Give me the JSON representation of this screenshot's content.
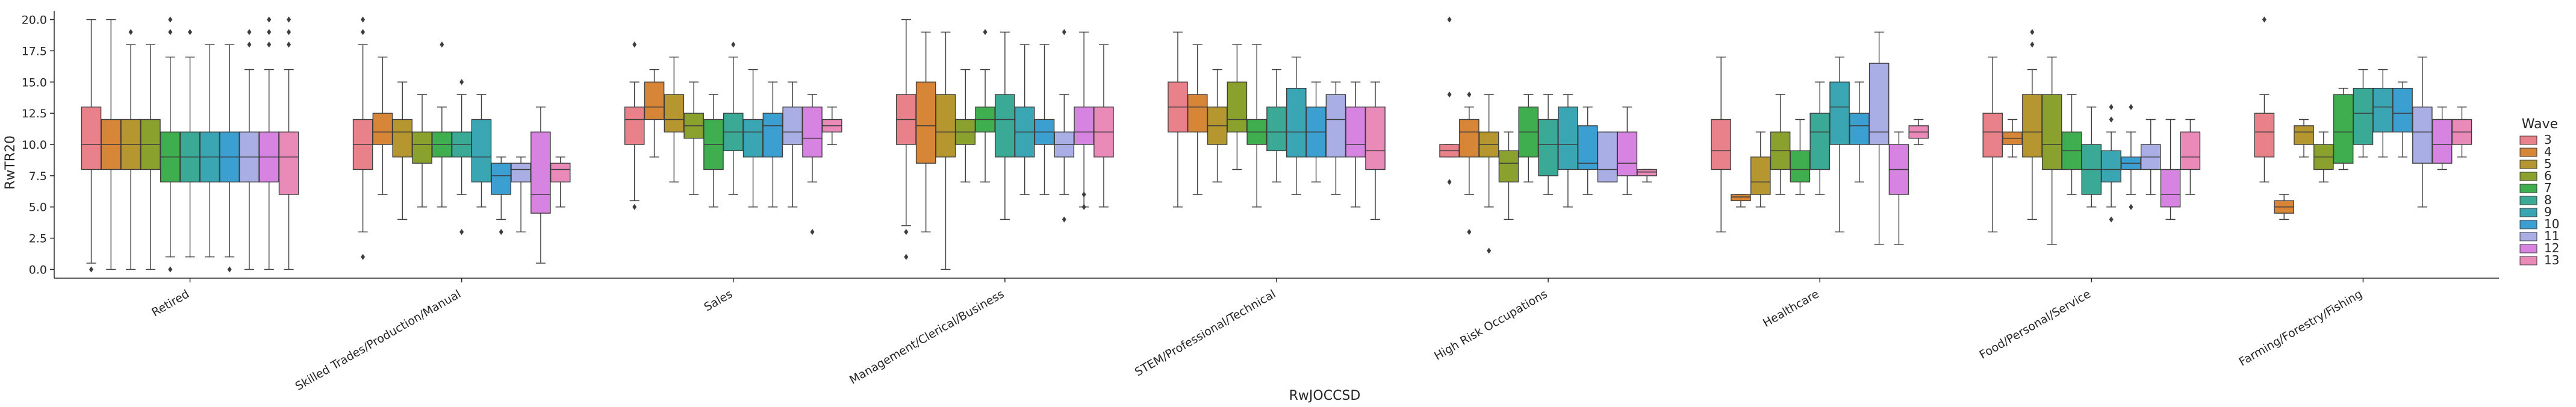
{
  "chart_data": {
    "type": "box",
    "xlabel": "RwJOCCSD",
    "ylabel": "RwTR20",
    "ylim": [
      -0.7,
      20.7
    ],
    "yticks": [
      0.0,
      2.5,
      5.0,
      7.5,
      10.0,
      12.5,
      15.0,
      17.5,
      20.0
    ],
    "ytick_labels": [
      "0.0",
      "2.5",
      "5.0",
      "7.5",
      "10.0",
      "12.5",
      "15.0",
      "17.5",
      "20.0"
    ],
    "categories": [
      "Retired",
      "Skilled Trades/Production/Manual",
      "Sales",
      "Management/Clerical/Business",
      "STEM/Professional/Technical",
      "High Risk Occupations",
      "Healthcare",
      "Food/Personal/Service",
      "Farming/Forestry/Fishing"
    ],
    "legend": {
      "title": "Wave",
      "position": "right"
    },
    "series": [
      {
        "name": "3",
        "color": "#e8818a",
        "boxes": [
          {
            "whislo": 0.5,
            "q1": 8,
            "med": 10,
            "q3": 13,
            "whishi": 20,
            "fliers": [
              0
            ]
          },
          {
            "whislo": 3,
            "q1": 8,
            "med": 10,
            "q3": 12,
            "whishi": 18,
            "fliers": [
              1,
              19,
              20
            ]
          },
          {
            "whislo": 5.5,
            "q1": 10,
            "med": 12,
            "q3": 13,
            "whishi": 15,
            "fliers": [
              5,
              18
            ]
          },
          {
            "whislo": 3.5,
            "q1": 10,
            "med": 12,
            "q3": 14,
            "whishi": 20,
            "fliers": [
              1,
              3
            ]
          },
          {
            "whislo": 5,
            "q1": 11,
            "med": 13,
            "q3": 15,
            "whishi": 19,
            "fliers": []
          },
          {
            "whislo": 9,
            "q1": 9,
            "med": 9.5,
            "q3": 10,
            "whishi": 10,
            "fliers": [
              7,
              14,
              20
            ]
          },
          {
            "whislo": 3,
            "q1": 8,
            "med": 9.5,
            "q3": 12,
            "whishi": 17,
            "fliers": []
          },
          {
            "whislo": 3,
            "q1": 9,
            "med": 11,
            "q3": 12.5,
            "whishi": 17,
            "fliers": []
          },
          {
            "whislo": 7,
            "q1": 9,
            "med": 11,
            "q3": 12.5,
            "whishi": 14,
            "fliers": [
              20
            ]
          }
        ]
      },
      {
        "name": "4",
        "color": "#d78536",
        "boxes": [
          {
            "whislo": 0,
            "q1": 8,
            "med": 10,
            "q3": 12,
            "whishi": 20,
            "fliers": []
          },
          {
            "whislo": 6,
            "q1": 10,
            "med": 11,
            "q3": 12.5,
            "whishi": 17,
            "fliers": []
          },
          {
            "whislo": 9,
            "q1": 12,
            "med": 13,
            "q3": 15,
            "whishi": 16,
            "fliers": []
          },
          {
            "whislo": 3,
            "q1": 8.5,
            "med": 11.5,
            "q3": 15,
            "whishi": 19,
            "fliers": []
          },
          {
            "whislo": 6,
            "q1": 11,
            "med": 13,
            "q3": 14,
            "whishi": 18,
            "fliers": []
          },
          {
            "whislo": 6,
            "q1": 9,
            "med": 11,
            "q3": 12,
            "whishi": 13,
            "fliers": [
              3,
              14
            ]
          },
          {
            "whislo": 5,
            "q1": 5.5,
            "med": 5.8,
            "q3": 6,
            "whishi": 6,
            "fliers": []
          },
          {
            "whislo": 9,
            "q1": 10,
            "med": 10.5,
            "q3": 11,
            "whishi": 12,
            "fliers": []
          },
          {
            "whislo": 4,
            "q1": 4.5,
            "med": 5,
            "q3": 5.5,
            "whishi": 6,
            "fliers": []
          }
        ]
      },
      {
        "name": "5",
        "color": "#b6962f",
        "boxes": [
          {
            "whislo": 0,
            "q1": 8,
            "med": 10,
            "q3": 12,
            "whishi": 18,
            "fliers": [
              19
            ]
          },
          {
            "whislo": 4,
            "q1": 9,
            "med": 11,
            "q3": 12,
            "whishi": 15,
            "fliers": []
          },
          {
            "whislo": 7,
            "q1": 11,
            "med": 12,
            "q3": 14,
            "whishi": 17,
            "fliers": []
          },
          {
            "whislo": 0,
            "q1": 9,
            "med": 11,
            "q3": 14,
            "whishi": 19,
            "fliers": []
          },
          {
            "whislo": 7,
            "q1": 10,
            "med": 11.5,
            "q3": 13,
            "whishi": 16,
            "fliers": []
          },
          {
            "whislo": 5,
            "q1": 9,
            "med": 10,
            "q3": 11,
            "whishi": 14,
            "fliers": [
              1.5
            ]
          },
          {
            "whislo": 5,
            "q1": 6,
            "med": 7,
            "q3": 9,
            "whishi": 11,
            "fliers": []
          },
          {
            "whislo": 4,
            "q1": 9,
            "med": 11,
            "q3": 14,
            "whishi": 16,
            "fliers": [
              18,
              19
            ]
          },
          {
            "whislo": 9,
            "q1": 10,
            "med": 11,
            "q3": 11.5,
            "whishi": 12,
            "fliers": []
          }
        ]
      },
      {
        "name": "6",
        "color": "#8aa22d",
        "boxes": [
          {
            "whislo": 0,
            "q1": 8,
            "med": 10,
            "q3": 12,
            "whishi": 18,
            "fliers": []
          },
          {
            "whislo": 5,
            "q1": 8.5,
            "med": 10,
            "q3": 11,
            "whishi": 14,
            "fliers": []
          },
          {
            "whislo": 6,
            "q1": 10.5,
            "med": 11.5,
            "q3": 12.5,
            "whishi": 15,
            "fliers": []
          },
          {
            "whislo": 7,
            "q1": 10,
            "med": 11,
            "q3": 12,
            "whishi": 16,
            "fliers": []
          },
          {
            "whislo": 8,
            "q1": 11,
            "med": 12,
            "q3": 15,
            "whishi": 18,
            "fliers": []
          },
          {
            "whislo": 4,
            "q1": 7,
            "med": 8.5,
            "q3": 9.5,
            "whishi": 11,
            "fliers": []
          },
          {
            "whislo": 6,
            "q1": 8,
            "med": 9.5,
            "q3": 11,
            "whishi": 14,
            "fliers": []
          },
          {
            "whislo": 2,
            "q1": 8,
            "med": 10,
            "q3": 14,
            "whishi": 17,
            "fliers": []
          },
          {
            "whislo": 7,
            "q1": 8,
            "med": 9,
            "q3": 10,
            "whishi": 11,
            "fliers": []
          }
        ]
      },
      {
        "name": "7",
        "color": "#3fae4f",
        "boxes": [
          {
            "whislo": 1,
            "q1": 7,
            "med": 9,
            "q3": 11,
            "whishi": 17,
            "fliers": [
              0,
              19,
              20
            ]
          },
          {
            "whislo": 5,
            "q1": 9,
            "med": 10,
            "q3": 11,
            "whishi": 13,
            "fliers": [
              18
            ]
          },
          {
            "whislo": 5,
            "q1": 8,
            "med": 10,
            "q3": 12,
            "whishi": 14,
            "fliers": []
          },
          {
            "whislo": 7,
            "q1": 11,
            "med": 12,
            "q3": 13,
            "whishi": 16,
            "fliers": [
              19
            ]
          },
          {
            "whislo": 5,
            "q1": 10,
            "med": 11,
            "q3": 12,
            "whishi": 18,
            "fliers": []
          },
          {
            "whislo": 7,
            "q1": 9,
            "med": 11,
            "q3": 13,
            "whishi": 14,
            "fliers": []
          },
          {
            "whislo": 6,
            "q1": 7,
            "med": 8,
            "q3": 9.5,
            "whishi": 12,
            "fliers": []
          },
          {
            "whislo": 6,
            "q1": 8,
            "med": 9.5,
            "q3": 11,
            "whishi": 14,
            "fliers": []
          },
          {
            "whislo": 8,
            "q1": 8.5,
            "med": 11,
            "q3": 14,
            "whishi": 14.5,
            "fliers": []
          }
        ]
      },
      {
        "name": "8",
        "color": "#3aa996",
        "boxes": [
          {
            "whislo": 1,
            "q1": 7,
            "med": 9,
            "q3": 11,
            "whishi": 17,
            "fliers": [
              19
            ]
          },
          {
            "whislo": 6,
            "q1": 9,
            "med": 10,
            "q3": 11,
            "whishi": 14,
            "fliers": [
              3,
              15
            ]
          },
          {
            "whislo": 6,
            "q1": 9.5,
            "med": 11,
            "q3": 12.5,
            "whishi": 17,
            "fliers": [
              18
            ]
          },
          {
            "whislo": 4,
            "q1": 9,
            "med": 12,
            "q3": 14,
            "whishi": 19,
            "fliers": []
          },
          {
            "whislo": 7,
            "q1": 9.5,
            "med": 11,
            "q3": 13,
            "whishi": 16,
            "fliers": []
          },
          {
            "whislo": 6,
            "q1": 7.5,
            "med": 10,
            "q3": 12,
            "whishi": 14,
            "fliers": []
          },
          {
            "whislo": 6,
            "q1": 8,
            "med": 11,
            "q3": 12.5,
            "whishi": 15,
            "fliers": []
          },
          {
            "whislo": 5,
            "q1": 6,
            "med": 8,
            "q3": 10,
            "whishi": 13,
            "fliers": []
          },
          {
            "whislo": 9,
            "q1": 10,
            "med": 12.5,
            "q3": 14.5,
            "whishi": 16,
            "fliers": []
          }
        ]
      },
      {
        "name": "9",
        "color": "#3aa6b4",
        "boxes": [
          {
            "whislo": 1,
            "q1": 7,
            "med": 9,
            "q3": 11,
            "whishi": 18,
            "fliers": []
          },
          {
            "whislo": 5,
            "q1": 7,
            "med": 9,
            "q3": 12,
            "whishi": 14,
            "fliers": []
          },
          {
            "whislo": 5,
            "q1": 9,
            "med": 11,
            "q3": 12,
            "whishi": 16,
            "fliers": []
          },
          {
            "whislo": 6,
            "q1": 9,
            "med": 11,
            "q3": 13,
            "whishi": 18,
            "fliers": []
          },
          {
            "whislo": 6,
            "q1": 9,
            "med": 11,
            "q3": 14.5,
            "whishi": 17,
            "fliers": []
          },
          {
            "whislo": 5,
            "q1": 8,
            "med": 10,
            "q3": 13,
            "whishi": 14,
            "fliers": []
          },
          {
            "whislo": 3,
            "q1": 10,
            "med": 13,
            "q3": 15,
            "whishi": 17,
            "fliers": []
          },
          {
            "whislo": 5,
            "q1": 7,
            "med": 8,
            "q3": 9.5,
            "whishi": 11,
            "fliers": [
              4,
              12,
              13
            ]
          },
          {
            "whislo": 9,
            "q1": 11,
            "med": 13,
            "q3": 14.5,
            "whishi": 16,
            "fliers": []
          }
        ]
      },
      {
        "name": "10",
        "color": "#3c9fd2",
        "boxes": [
          {
            "whislo": 1,
            "q1": 7,
            "med": 9,
            "q3": 11,
            "whishi": 18,
            "fliers": [
              0
            ]
          },
          {
            "whislo": 4,
            "q1": 6,
            "med": 7.5,
            "q3": 8.5,
            "whishi": 9,
            "fliers": [
              3
            ]
          },
          {
            "whislo": 5,
            "q1": 9,
            "med": 11.5,
            "q3": 12.5,
            "whishi": 15,
            "fliers": []
          },
          {
            "whislo": 6,
            "q1": 10,
            "med": 11,
            "q3": 12,
            "whishi": 18,
            "fliers": []
          },
          {
            "whislo": 7,
            "q1": 9,
            "med": 11,
            "q3": 13,
            "whishi": 15,
            "fliers": []
          },
          {
            "whislo": 6,
            "q1": 8,
            "med": 8.5,
            "q3": 11.5,
            "whishi": 13,
            "fliers": []
          },
          {
            "whislo": 7,
            "q1": 10,
            "med": 11.5,
            "q3": 12.5,
            "whishi": 15,
            "fliers": []
          },
          {
            "whislo": 6,
            "q1": 8,
            "med": 8.5,
            "q3": 9,
            "whishi": 11,
            "fliers": [
              5,
              13
            ]
          },
          {
            "whislo": 9,
            "q1": 11,
            "med": 12.5,
            "q3": 14.5,
            "whishi": 15,
            "fliers": []
          }
        ]
      },
      {
        "name": "11",
        "color": "#a9aee5",
        "boxes": [
          {
            "whislo": 0,
            "q1": 7,
            "med": 9,
            "q3": 11,
            "whishi": 16,
            "fliers": [
              18,
              19
            ]
          },
          {
            "whislo": 3,
            "q1": 7,
            "med": 8,
            "q3": 8.5,
            "whishi": 9,
            "fliers": []
          },
          {
            "whislo": 5,
            "q1": 10,
            "med": 11,
            "q3": 13,
            "whishi": 15,
            "fliers": []
          },
          {
            "whislo": 6,
            "q1": 9,
            "med": 10,
            "q3": 11,
            "whishi": 14,
            "fliers": [
              4,
              19
            ]
          },
          {
            "whislo": 6,
            "q1": 9,
            "med": 12,
            "q3": 14,
            "whishi": 15,
            "fliers": []
          },
          {
            "whislo": 7,
            "q1": 7,
            "med": 8,
            "q3": 11,
            "whishi": 11,
            "fliers": []
          },
          {
            "whislo": 2,
            "q1": 10,
            "med": 11,
            "q3": 16.5,
            "whishi": 19,
            "fliers": []
          },
          {
            "whislo": 6,
            "q1": 8,
            "med": 9,
            "q3": 10,
            "whishi": 12,
            "fliers": []
          },
          {
            "whislo": 5,
            "q1": 8.5,
            "med": 11,
            "q3": 13,
            "whishi": 17,
            "fliers": []
          }
        ]
      },
      {
        "name": "12",
        "color": "#d783e1",
        "boxes": [
          {
            "whislo": 0,
            "q1": 7,
            "med": 9,
            "q3": 11,
            "whishi": 16,
            "fliers": [
              18,
              19,
              20
            ]
          },
          {
            "whislo": 0.5,
            "q1": 4.5,
            "med": 6,
            "q3": 11,
            "whishi": 13,
            "fliers": []
          },
          {
            "whislo": 7,
            "q1": 9,
            "med": 10.5,
            "q3": 13,
            "whishi": 14,
            "fliers": [
              3
            ]
          },
          {
            "whislo": 5,
            "q1": 10,
            "med": 11,
            "q3": 13,
            "whishi": 19,
            "fliers": [
              5,
              6
            ]
          },
          {
            "whislo": 5,
            "q1": 9,
            "med": 10,
            "q3": 13,
            "whishi": 15,
            "fliers": []
          },
          {
            "whislo": 6,
            "q1": 7.5,
            "med": 8.5,
            "q3": 11,
            "whishi": 13,
            "fliers": []
          },
          {
            "whislo": 2,
            "q1": 6,
            "med": 8,
            "q3": 10,
            "whishi": 11,
            "fliers": []
          },
          {
            "whislo": 4,
            "q1": 5,
            "med": 6,
            "q3": 8,
            "whishi": 12,
            "fliers": []
          },
          {
            "whislo": 8,
            "q1": 8.5,
            "med": 10,
            "q3": 12,
            "whishi": 13,
            "fliers": []
          }
        ]
      },
      {
        "name": "13",
        "color": "#e98ab9",
        "boxes": [
          {
            "whislo": 0,
            "q1": 6,
            "med": 9,
            "q3": 11,
            "whishi": 16,
            "fliers": [
              18,
              19,
              20
            ]
          },
          {
            "whislo": 5,
            "q1": 7,
            "med": 8,
            "q3": 8.5,
            "whishi": 9,
            "fliers": []
          },
          {
            "whislo": 10,
            "q1": 11,
            "med": 11.5,
            "q3": 12,
            "whishi": 13,
            "fliers": []
          },
          {
            "whislo": 5,
            "q1": 9,
            "med": 11,
            "q3": 13,
            "whishi": 18,
            "fliers": []
          },
          {
            "whislo": 4,
            "q1": 8,
            "med": 9.5,
            "q3": 13,
            "whishi": 15,
            "fliers": []
          },
          {
            "whislo": 7,
            "q1": 7.5,
            "med": 7.8,
            "q3": 8,
            "whishi": 8,
            "fliers": []
          },
          {
            "whislo": 10,
            "q1": 10.5,
            "med": 11,
            "q3": 11.5,
            "whishi": 12,
            "fliers": []
          },
          {
            "whislo": 6,
            "q1": 8,
            "med": 9,
            "q3": 11,
            "whishi": 12,
            "fliers": []
          },
          {
            "whislo": 9,
            "q1": 10,
            "med": 11,
            "q3": 12,
            "whishi": 13,
            "fliers": []
          }
        ]
      }
    ]
  }
}
